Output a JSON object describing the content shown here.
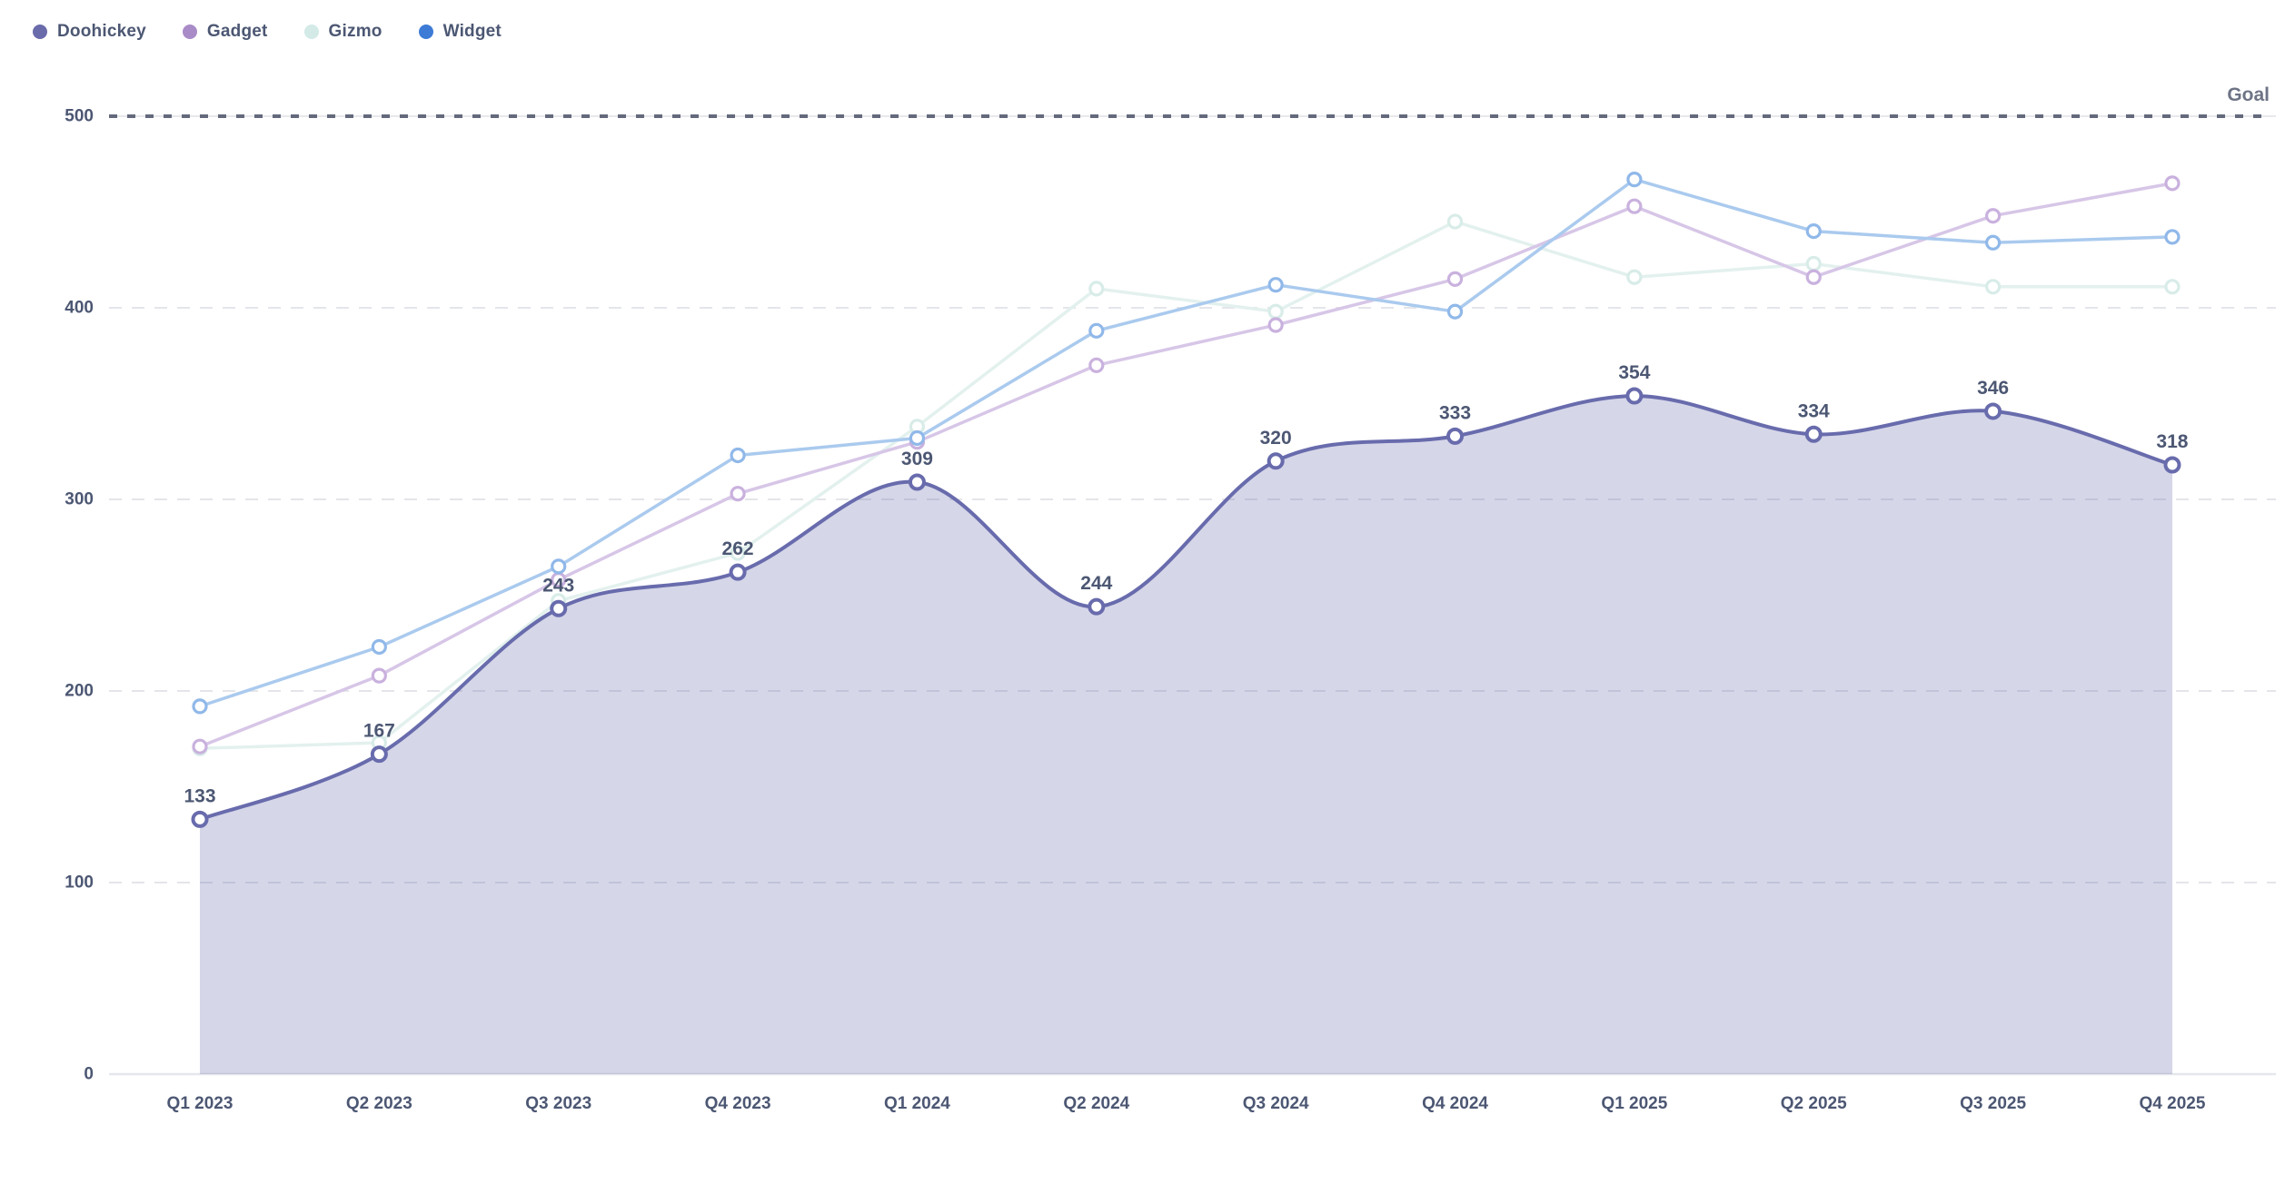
{
  "chart": {
    "background": "#ffffff",
    "text_color": "#4C5773",
    "gridline_color": "#E4E5EA",
    "baseline_color": "#E6E7EB",
    "goal_line_color": "#646A7C",
    "goal_underline_color": "#E8E8EC",
    "goal_label_color": "#6E7486"
  },
  "legend": {
    "items": [
      {
        "label": "Doohickey",
        "color": "#6A6BAB"
      },
      {
        "label": "Gadget",
        "color": "#A98BC7"
      },
      {
        "label": "Gizmo",
        "color": "#D3EAE7"
      },
      {
        "label": "Widget",
        "color": "#3D7BD6"
      }
    ]
  },
  "chart_data": {
    "type": "line",
    "title": "",
    "xlabel": "",
    "ylabel": "",
    "legend_position": "top-left",
    "grid": "horizontal-dashed",
    "categories": [
      "Q1 2023",
      "Q2 2023",
      "Q3 2023",
      "Q4 2023",
      "Q1 2024",
      "Q2 2024",
      "Q3 2024",
      "Q4 2024",
      "Q1 2025",
      "Q2 2025",
      "Q3 2025",
      "Q4 2025"
    ],
    "y_axis": {
      "min": 0,
      "max": 500,
      "tick_step": 100,
      "ticks": [
        0,
        100,
        200,
        300,
        400,
        500
      ]
    },
    "goal": {
      "value": 500,
      "label": "Goal"
    },
    "series": [
      {
        "name": "Doohickey",
        "values": [
          133,
          167,
          243,
          262,
          309,
          244,
          320,
          333,
          354,
          334,
          346,
          318
        ],
        "style": "area",
        "smooth": true,
        "show_value_labels": true,
        "line_color": "#686BAC",
        "marker_color": "#686BAC",
        "fill_color": "rgba(104,107,172,0.28)"
      },
      {
        "name": "Gadget",
        "values": [
          171,
          208,
          258,
          303,
          330,
          370,
          391,
          415,
          453,
          416,
          448,
          465
        ],
        "style": "line",
        "smooth": false,
        "show_value_labels": false,
        "line_color": "#D7C6E7",
        "marker_color": "#C9B1DE",
        "fill_color": "none"
      },
      {
        "name": "Gizmo",
        "values": [
          170,
          173,
          247,
          272,
          338,
          410,
          398,
          445,
          416,
          423,
          411,
          411
        ],
        "style": "line",
        "smooth": false,
        "show_value_labels": false,
        "line_color": "#E3F1EE",
        "marker_color": "#D8ECE8",
        "fill_color": "none"
      },
      {
        "name": "Widget",
        "values": [
          192,
          223,
          265,
          323,
          332,
          388,
          412,
          398,
          467,
          440,
          434,
          437
        ],
        "style": "line",
        "smooth": false,
        "show_value_labels": false,
        "line_color": "#AACAEE",
        "marker_color": "#90B8E9",
        "fill_color": "none"
      }
    ]
  }
}
